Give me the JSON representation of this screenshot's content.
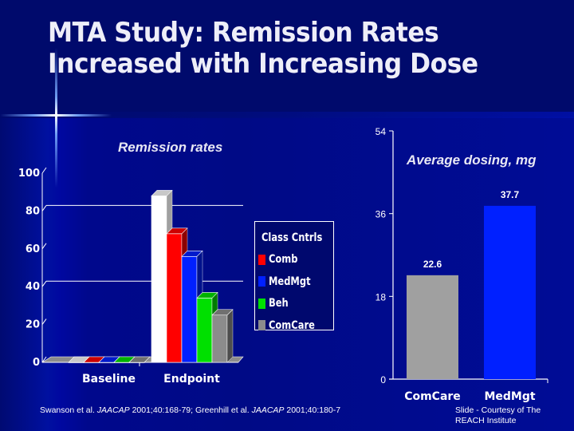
{
  "slide": {
    "title_line1": "MTA Study:  Remission Rates",
    "title_line2": "Increased with Increasing Dose",
    "citation_prefix1": "Swanson et al. ",
    "citation_journal1": "JAACAP",
    "citation_rest1": " 2001;40:168-79;  Greenhill et al. ",
    "citation_journal2": "JAACAP",
    "citation_rest2": " 2001;40:180-7",
    "credit_line1": "Slide - Courtesy of The",
    "credit_line2": "REACH Institute"
  },
  "colors": {
    "Class Cntrls": "#ffffff",
    "Comb": "#ff0000",
    "MedMgt": "#0020ff",
    "Beh": "#00e000",
    "ComCare": "#8c8c8c"
  },
  "chart_data": [
    {
      "type": "bar",
      "title": "Remission rates",
      "xlabel": "",
      "ylabel": "",
      "categories": [
        "Baseline",
        "Endpoint"
      ],
      "series": [
        {
          "name": "Class Cntrls",
          "values": [
            0,
            88
          ]
        },
        {
          "name": "Comb",
          "values": [
            0,
            68
          ]
        },
        {
          "name": "MedMgt",
          "values": [
            0,
            56
          ]
        },
        {
          "name": "Beh",
          "values": [
            0,
            34
          ]
        },
        {
          "name": "ComCare",
          "values": [
            0,
            25
          ]
        }
      ],
      "ylim": [
        0,
        100
      ],
      "yticks": [
        "0",
        "20",
        "40",
        "60",
        "80",
        "100"
      ],
      "gridlines": [
        40,
        80
      ],
      "legend": "right",
      "style": "3d"
    },
    {
      "type": "bar",
      "title": "Average dosing, mg",
      "xlabel": "",
      "ylabel": "",
      "categories": [
        "ComCare",
        "MedMgt"
      ],
      "values": [
        22.6,
        37.7
      ],
      "data_labels": [
        "22.6",
        "37.7"
      ],
      "bar_colors": [
        "#a0a0a0",
        "#0020ff"
      ],
      "ylim": [
        0,
        54
      ],
      "yticks": [
        "0",
        "18",
        "36",
        "54"
      ],
      "grid": false
    }
  ]
}
